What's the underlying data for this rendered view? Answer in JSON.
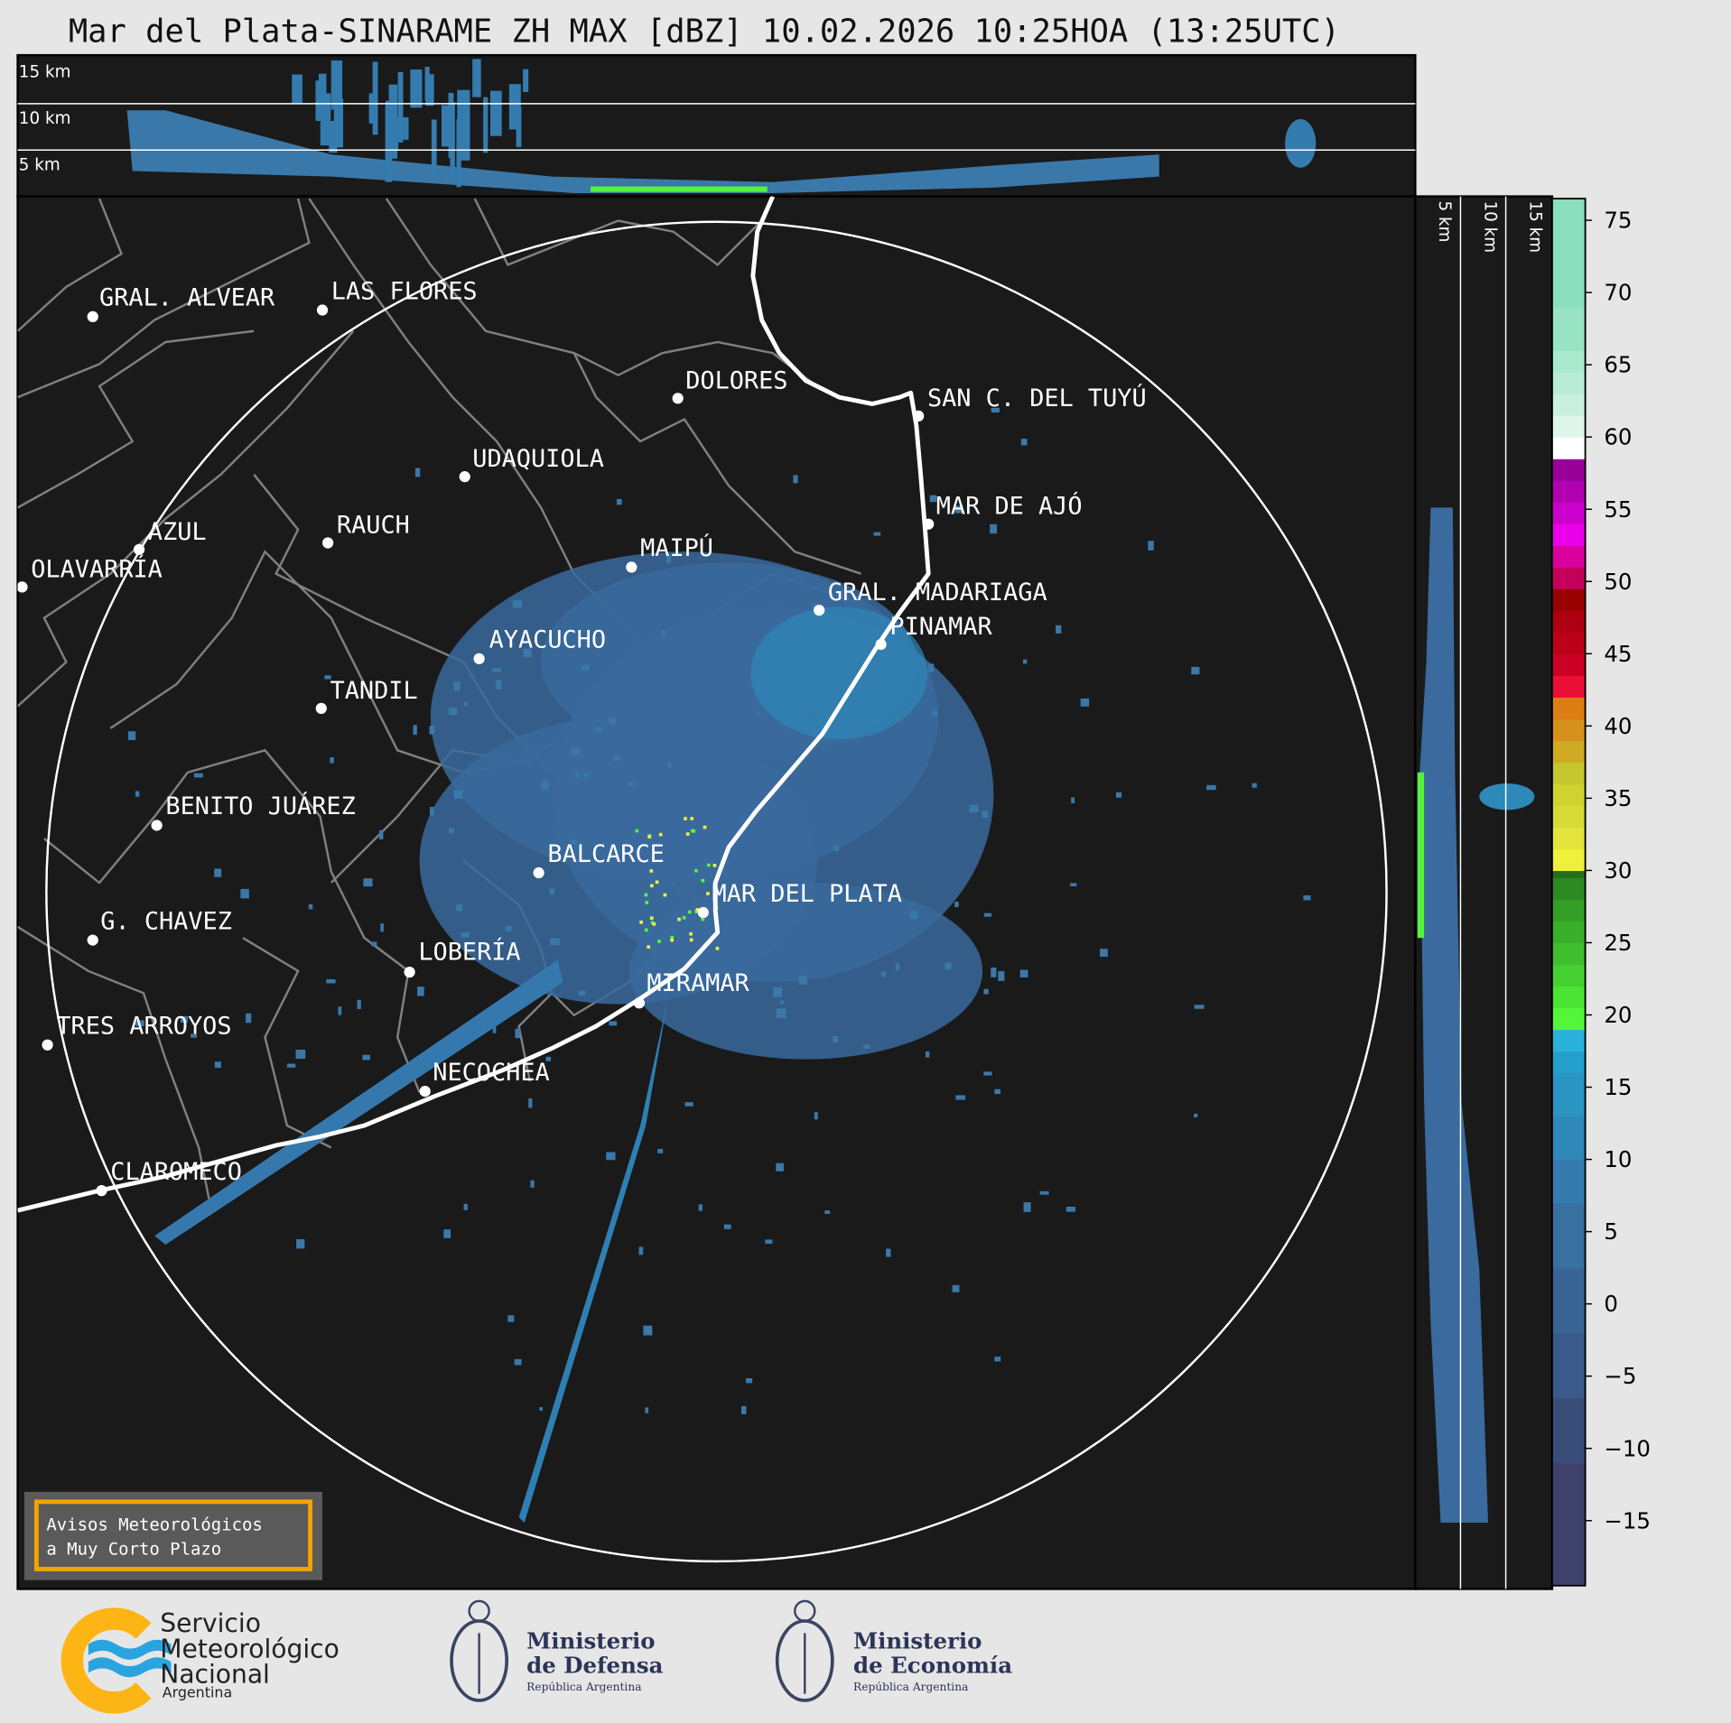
{
  "title": "Mar del Plata-SINARAME ZH MAX [dBZ] 10.02.2026 10:25HOA (13:25UTC)",
  "top_panel": {
    "labels": [
      "15 km",
      "10 km",
      "5 km"
    ]
  },
  "side_panel": {
    "labels": [
      "5 km",
      "10 km",
      "15 km"
    ]
  },
  "cities": [
    {
      "name": "GRAL. ALVEAR"
    },
    {
      "name": "LAS FLORES"
    },
    {
      "name": "DOLORES"
    },
    {
      "name": "SAN C. DEL TUYÚ"
    },
    {
      "name": "UDAQUIOLA"
    },
    {
      "name": "MAR DE AJÓ"
    },
    {
      "name": "AZUL"
    },
    {
      "name": "RAUCH"
    },
    {
      "name": "MAIPÚ"
    },
    {
      "name": "OLAVARRÍA"
    },
    {
      "name": "GRAL. MADARIAGA"
    },
    {
      "name": "PINAMAR"
    },
    {
      "name": "AYACUCHO"
    },
    {
      "name": "TANDIL"
    },
    {
      "name": "BENITO JUÁREZ"
    },
    {
      "name": "BALCARCE"
    },
    {
      "name": "MAR DEL PLATA"
    },
    {
      "name": "G. CHAVEZ"
    },
    {
      "name": "LOBERÍA"
    },
    {
      "name": "MIRAMAR"
    },
    {
      "name": "TRES ARROYOS"
    },
    {
      "name": "NECOCHEA"
    },
    {
      "name": "CLAROMECO"
    }
  ],
  "colorbar": {
    "unit": "dBZ",
    "ticks": [
      "75",
      "70",
      "65",
      "60",
      "55",
      "50",
      "45",
      "40",
      "35",
      "30",
      "25",
      "20",
      "15",
      "10",
      "5",
      "0",
      "−5",
      "−10",
      "−15"
    ],
    "range": [
      -19.5,
      76.5
    ],
    "bands": [
      [
        -19.5,
        -11,
        "#3d416b"
      ],
      [
        -11,
        -6.5,
        "#3a4d78"
      ],
      [
        -6.5,
        -2,
        "#3b5a8c"
      ],
      [
        -2,
        2.5,
        "#3a6496"
      ],
      [
        2.5,
        7,
        "#3870a0"
      ],
      [
        7,
        10,
        "#347caf"
      ],
      [
        10,
        13,
        "#2e88b8"
      ],
      [
        13,
        16,
        "#2a94c2"
      ],
      [
        16,
        17.5,
        "#25a0cc"
      ],
      [
        17.5,
        19,
        "#2ab2da"
      ],
      [
        19,
        20.5,
        "#55f53a"
      ],
      [
        20.5,
        22,
        "#4be434"
      ],
      [
        22,
        23.5,
        "#45d030"
      ],
      [
        23.5,
        25,
        "#3fbf2d"
      ],
      [
        25,
        26.5,
        "#3aaf2a"
      ],
      [
        26.5,
        28,
        "#33a025"
      ],
      [
        28,
        29.5,
        "#2c8a22"
      ],
      [
        29.5,
        30,
        "#246f1c"
      ],
      [
        30,
        31.5,
        "#eef03c"
      ],
      [
        31.5,
        33,
        "#e2e43a"
      ],
      [
        33,
        34.5,
        "#d8da36"
      ],
      [
        34.5,
        36,
        "#d0d230"
      ],
      [
        36,
        37.5,
        "#c4c62e"
      ],
      [
        37.5,
        39,
        "#d0aa24"
      ],
      [
        39,
        40.5,
        "#d6901c"
      ],
      [
        40.5,
        42,
        "#dc7e14"
      ],
      [
        42,
        43.5,
        "#ec0f35"
      ],
      [
        43.5,
        45,
        "#cc0024"
      ],
      [
        45,
        46.5,
        "#bc0018"
      ],
      [
        46.5,
        48,
        "#ae0010"
      ],
      [
        48,
        49.5,
        "#990000"
      ],
      [
        49.5,
        51,
        "#c3005a"
      ],
      [
        51,
        52.5,
        "#da009e"
      ],
      [
        52.5,
        54,
        "#ea00ea"
      ],
      [
        54,
        55.5,
        "#cc00cc"
      ],
      [
        55.5,
        57,
        "#b000b0"
      ],
      [
        57,
        58.5,
        "#990099"
      ],
      [
        58.5,
        60,
        "#ffffff"
      ],
      [
        60,
        61.5,
        "#e0f5ea"
      ],
      [
        61.5,
        63,
        "#c8f0de"
      ],
      [
        63,
        64.5,
        "#b8ecd6"
      ],
      [
        64.5,
        66,
        "#a9e9ce"
      ],
      [
        66,
        69,
        "#98e3c4"
      ],
      [
        69,
        76.5,
        "#8adfbf"
      ]
    ]
  },
  "alert_box": {
    "line1": "Avisos Meteorológicos",
    "line2": "a Muy Corto Plazo",
    "border_color": "#f5a300"
  },
  "logos": {
    "smn": {
      "line1": "Servicio",
      "line2": "Meteorológico",
      "line3": "Nacional",
      "line4": "Argentina"
    },
    "defensa": {
      "line1": "Ministerio",
      "line2": "de Defensa",
      "line3": "República Argentina"
    },
    "economia": {
      "line1": "Ministerio",
      "line2": "de Economía",
      "line3": "República Argentina"
    }
  },
  "colors": {
    "background": "#e6e6e6",
    "panel": "#1a1a1a",
    "echo": "#3a78aa",
    "coast": "#ffffff",
    "borders": "#808080"
  }
}
